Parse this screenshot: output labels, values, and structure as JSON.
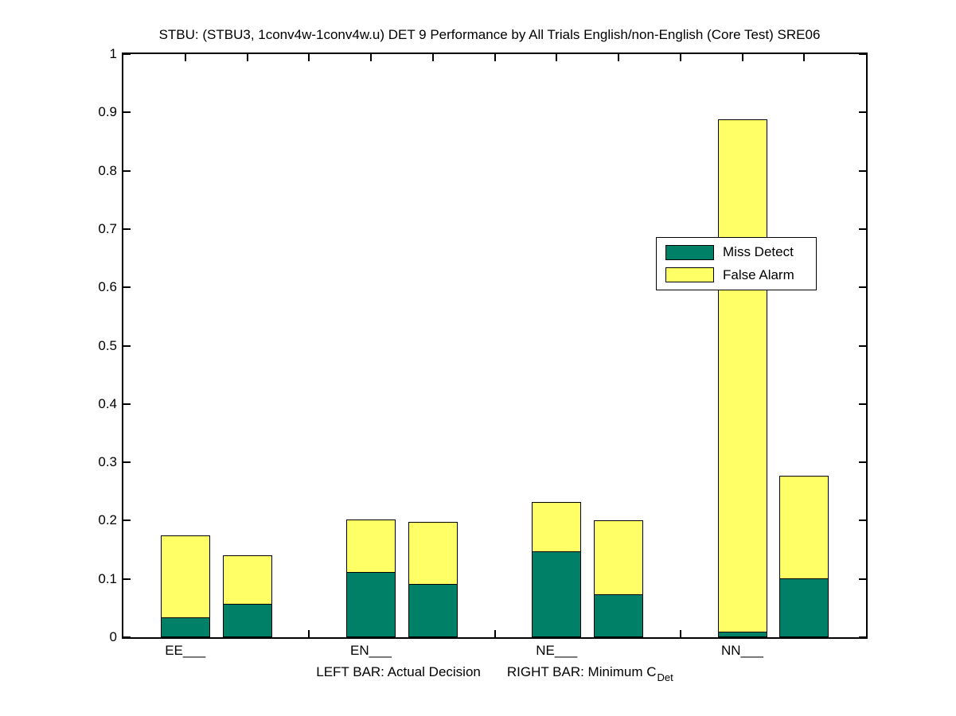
{
  "title": "STBU: (STBU3, 1conv4w-1conv4w.u) DET 9 Performance by All Trials English/non-English (Core Test) SRE06",
  "xlabel": {
    "left": "LEFT BAR: Actual Decision",
    "right": "RIGHT BAR: Minimum C",
    "right_sub": "Det"
  },
  "legend": {
    "items": [
      {
        "label": "Miss Detect",
        "color": "#008066"
      },
      {
        "label": "False Alarm",
        "color": "#FFFF66"
      }
    ]
  },
  "colors": {
    "miss_detect": "#008066",
    "false_alarm": "#FFFF66",
    "axis": "#000000",
    "background": "#FFFFFF"
  },
  "chart_data": {
    "type": "bar",
    "stacked": true,
    "title": "STBU: (STBU3, 1conv4w-1conv4w.u) DET 9 Performance by All Trials English/non-English (Core Test) SRE06",
    "xlabel": "LEFT BAR: Actual Decision    RIGHT BAR: Minimum C_Det",
    "ylabel": "",
    "grid": false,
    "legend_position": "upper-right-inside",
    "ylim": [
      0,
      1
    ],
    "yticks": [
      0,
      0.1,
      0.2,
      0.3,
      0.4,
      0.5,
      0.6,
      0.7,
      0.8,
      0.9,
      1
    ],
    "categories": [
      "EE___",
      "EN___",
      "NE___",
      "NN___"
    ],
    "bar_pair_meaning": {
      "left": "Actual Decision",
      "right": "Minimum C_Det"
    },
    "series": [
      {
        "name": "Miss Detect",
        "color": "#008066",
        "left_bar_values": [
          0.035,
          0.112,
          0.148,
          0.01
        ],
        "right_bar_values": [
          0.058,
          0.092,
          0.075,
          0.101
        ]
      },
      {
        "name": "False Alarm",
        "color": "#FFFF66",
        "left_bar_values": [
          0.139,
          0.09,
          0.084,
          0.878
        ],
        "right_bar_values": [
          0.082,
          0.106,
          0.126,
          0.176
        ]
      }
    ],
    "stack_totals": {
      "left_bar": [
        0.174,
        0.202,
        0.232,
        0.888
      ],
      "right_bar": [
        0.14,
        0.198,
        0.201,
        0.277
      ]
    }
  }
}
